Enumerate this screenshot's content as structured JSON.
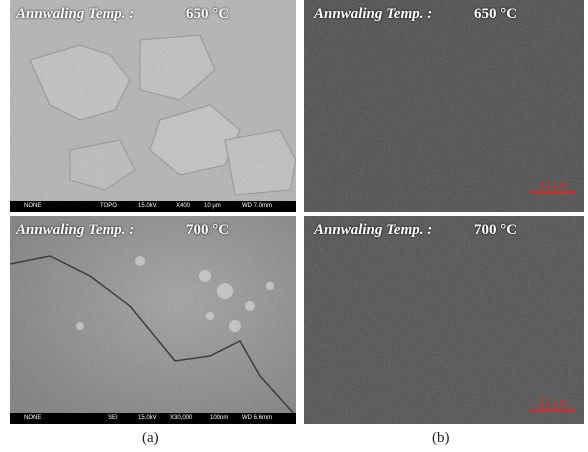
{
  "panels": [
    {
      "caption": "(a)",
      "images": [
        {
          "label": "Annwaling Temp. :",
          "temp": "650 °C",
          "info_bar": [
            "NONE",
            "TOPO",
            "15.0kV",
            "X400",
            "10 μm",
            "WD 7.0mm"
          ]
        },
        {
          "label": "Annwaling Temp. :",
          "temp": "700 °C",
          "info_bar": [
            "NONE",
            "SEI",
            "15.0kV",
            "X30,000",
            "100nm",
            "WD 6.6mm"
          ]
        }
      ]
    },
    {
      "caption": "(b)",
      "images": [
        {
          "label": "Annwaling Temp. :",
          "temp": "650 °C",
          "scale_bar": "20 μm"
        },
        {
          "label": "Annwaling Temp. :",
          "temp": "700 °C",
          "scale_bar": "20 μm"
        }
      ]
    }
  ]
}
